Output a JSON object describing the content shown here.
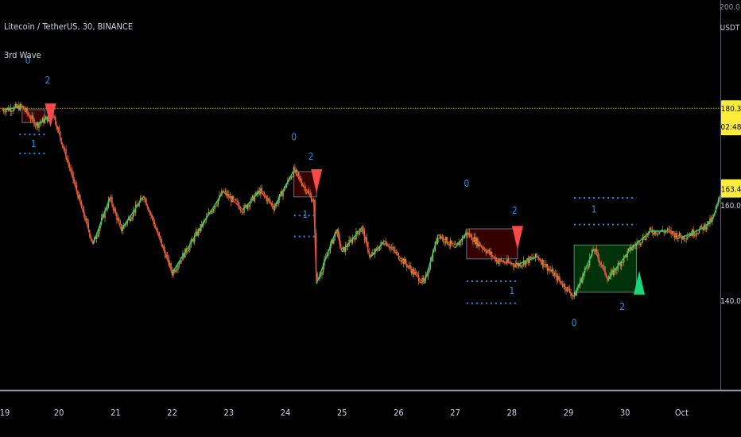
{
  "title": "Litecoin / TetherUS, 30, BINANCE",
  "indicator": "3rd Wave",
  "colors": {
    "background": "#000000",
    "up_wave": "#26d07c",
    "down_wave": "#f0443c",
    "candle_up": "#b7a83a",
    "candle_down": "#d8783a",
    "level_line": "#c8a400",
    "dotted": "#2f8fd6",
    "label_blue": "#2f8fd6",
    "price_tag": "#ffeb3b",
    "sell_arrow": "#f84a4a",
    "buy_arrow": "#19d67d"
  },
  "price_axis": {
    "unit_label": "USDT",
    "top_label": "200.0",
    "labels": [
      {
        "value": 160.0,
        "text": "160.0"
      },
      {
        "value": 140.0,
        "text": "140.0"
      }
    ],
    "level_tag": {
      "value": 180.3,
      "text": "180.3",
      "sub": "02:48"
    },
    "current_tag": {
      "value": 163.4,
      "text": "163.4"
    }
  },
  "time_axis": {
    "labels": [
      "19",
      "20",
      "21",
      "22",
      "23",
      "24",
      "25",
      "26",
      "27",
      "28",
      "29",
      "30",
      "Oct"
    ]
  },
  "chart_data": {
    "type": "candlestick",
    "symbol": "Litecoin / TetherUS",
    "interval": "30",
    "exchange": "BINANCE",
    "price_ylim": [
      136,
      202
    ],
    "x": [
      "19",
      "20",
      "21",
      "22",
      "23",
      "24",
      "25",
      "26",
      "27",
      "28",
      "29",
      "30",
      "Oct"
    ],
    "horizontal_level": 180.3,
    "last_price": 163.4,
    "zigzag": [
      {
        "day": 19.0,
        "price": 180.0
      },
      {
        "day": 19.35,
        "price": 180.6
      },
      {
        "day": 19.6,
        "price": 176.8
      },
      {
        "day": 19.9,
        "price": 179.0
      },
      {
        "day": 20.6,
        "price": 151.8
      },
      {
        "day": 20.9,
        "price": 161.5
      },
      {
        "day": 21.1,
        "price": 154.8
      },
      {
        "day": 21.5,
        "price": 161.9
      },
      {
        "day": 22.0,
        "price": 145.8
      },
      {
        "day": 22.9,
        "price": 162.8
      },
      {
        "day": 23.25,
        "price": 159.0
      },
      {
        "day": 23.55,
        "price": 163.0
      },
      {
        "day": 23.8,
        "price": 159.5
      },
      {
        "day": 24.15,
        "price": 167.3
      },
      {
        "day": 24.5,
        "price": 160.7
      },
      {
        "day": 24.55,
        "price": 143.5
      },
      {
        "day": 24.9,
        "price": 154.8
      },
      {
        "day": 25.0,
        "price": 150.2
      },
      {
        "day": 25.35,
        "price": 155.3
      },
      {
        "day": 25.5,
        "price": 149.0
      },
      {
        "day": 25.75,
        "price": 152.5
      },
      {
        "day": 26.45,
        "price": 143.5
      },
      {
        "day": 26.7,
        "price": 153.8
      },
      {
        "day": 27.0,
        "price": 151.0
      },
      {
        "day": 27.2,
        "price": 154.2
      },
      {
        "day": 27.75,
        "price": 148.3
      },
      {
        "day": 28.1,
        "price": 147.5
      },
      {
        "day": 28.45,
        "price": 149.2
      },
      {
        "day": 29.1,
        "price": 140.8
      },
      {
        "day": 29.45,
        "price": 150.8
      },
      {
        "day": 29.7,
        "price": 144.5
      },
      {
        "day": 30.1,
        "price": 150.8
      },
      {
        "day": 30.45,
        "price": 154.5
      },
      {
        "day": 30.75,
        "price": 154.5
      },
      {
        "day": 31.0,
        "price": 153.2
      },
      {
        "day": 31.35,
        "price": 155.0
      },
      {
        "day": 31.55,
        "price": 157.0
      },
      {
        "day": 31.75,
        "price": 164.5
      }
    ],
    "wave_zones": [
      {
        "kind": "bearish",
        "day_start": 19.35,
        "day_end": 19.75,
        "top": 180.0,
        "bottom": 177.3
      },
      {
        "kind": "bearish",
        "day_start": 24.15,
        "day_end": 24.55,
        "top": 167.0,
        "bottom": 161.7
      },
      {
        "kind": "bearish",
        "day_start": 27.2,
        "day_end": 28.1,
        "top": 155.0,
        "bottom": 148.7
      },
      {
        "kind": "bullish",
        "day_start": 29.1,
        "day_end": 30.2,
        "top": 151.6,
        "bottom": 141.7
      }
    ],
    "signals": [
      {
        "type": "sell",
        "day": 19.85,
        "price": 181.3
      },
      {
        "type": "sell",
        "day": 24.55,
        "price": 167.5
      },
      {
        "type": "sell",
        "day": 28.1,
        "price": 155.6
      },
      {
        "type": "buy",
        "day": 30.25,
        "price": 141.2
      }
    ],
    "wave_labels": [
      {
        "text": "0",
        "day": 19.45,
        "price": 189.7
      },
      {
        "text": "2",
        "day": 19.8,
        "price": 185.5
      },
      {
        "text": "1",
        "day": 19.55,
        "price": 172.2
      },
      {
        "text": "0",
        "day": 24.15,
        "price": 173.6
      },
      {
        "text": "2",
        "day": 24.45,
        "price": 169.5
      },
      {
        "text": "1",
        "day": 24.35,
        "price": 157.3
      },
      {
        "text": "0",
        "day": 27.2,
        "price": 163.8
      },
      {
        "text": "2",
        "day": 28.05,
        "price": 158.2
      },
      {
        "text": "1",
        "day": 28.0,
        "price": 141.3
      },
      {
        "text": "1",
        "day": 29.45,
        "price": 158.4
      },
      {
        "text": "0",
        "day": 29.1,
        "price": 134.6
      },
      {
        "text": "2",
        "day": 29.95,
        "price": 138.0
      }
    ],
    "dotted_levels": [
      {
        "day_start": 19.3,
        "day_end": 19.75,
        "price": 174.8
      },
      {
        "day_start": 19.3,
        "day_end": 19.75,
        "price": 170.8
      },
      {
        "day_start": 24.15,
        "day_end": 24.55,
        "price": 157.8
      },
      {
        "day_start": 24.15,
        "day_end": 24.55,
        "price": 153.4
      },
      {
        "day_start": 27.2,
        "day_end": 28.1,
        "price": 144.0
      },
      {
        "day_start": 27.2,
        "day_end": 28.1,
        "price": 139.4
      },
      {
        "day_start": 29.1,
        "day_end": 30.2,
        "price": 161.5
      },
      {
        "day_start": 29.1,
        "day_end": 30.2,
        "price": 155.9
      }
    ]
  }
}
